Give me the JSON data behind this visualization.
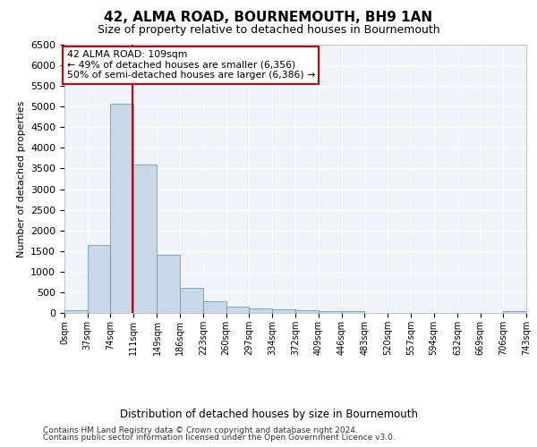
{
  "title": "42, ALMA ROAD, BOURNEMOUTH, BH9 1AN",
  "subtitle": "Size of property relative to detached houses in Bournemouth",
  "xlabel": "Distribution of detached houses by size in Bournemouth",
  "ylabel": "Number of detached properties",
  "footer_line1": "Contains HM Land Registry data © Crown copyright and database right 2024.",
  "footer_line2": "Contains public sector information licensed under the Open Government Licence v3.0.",
  "annotation_title": "42 ALMA ROAD: 109sqm",
  "annotation_line2": "← 49% of detached houses are smaller (6,356)",
  "annotation_line3": "50% of semi-detached houses are larger (6,386) →",
  "property_sqm": 109,
  "bin_edges": [
    0,
    37,
    74,
    111,
    149,
    186,
    223,
    260,
    297,
    334,
    372,
    409,
    446,
    483,
    520,
    557,
    594,
    632,
    669,
    706,
    743
  ],
  "bar_values": [
    75,
    1650,
    5060,
    3600,
    1400,
    610,
    290,
    155,
    115,
    80,
    60,
    50,
    35,
    10,
    5,
    3,
    2,
    1,
    1,
    50
  ],
  "bar_color": "#c8d8e8",
  "bar_edge_color": "#5090c0",
  "vline_color": "#cc0000",
  "vline_x": 109,
  "ylim": [
    0,
    6500
  ],
  "yticks": [
    0,
    500,
    1000,
    1500,
    2000,
    2500,
    3000,
    3500,
    4000,
    4500,
    5000,
    5500,
    6000,
    6500
  ],
  "bg_color": "#f0f4f8",
  "grid_color": "#ffffff",
  "annotation_box_color": "#ffffff",
  "annotation_box_edge": "#cc0000",
  "title_fontsize": 11,
  "subtitle_fontsize": 9,
  "ylabel_fontsize": 8,
  "xlabel_fontsize": 8.5,
  "tick_fontsize": 8,
  "xtick_fontsize": 7,
  "footer_fontsize": 6.5
}
